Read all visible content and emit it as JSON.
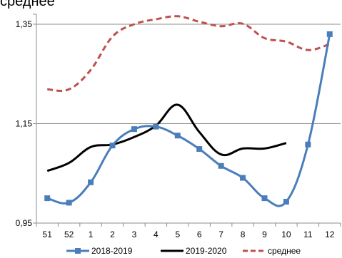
{
  "chart_data": {
    "type": "line",
    "title": "среднее",
    "xlabel": "",
    "ylabel": "",
    "categories": [
      "51",
      "52",
      "1",
      "2",
      "3",
      "4",
      "5",
      "6",
      "7",
      "8",
      "9",
      "10",
      "11",
      "12"
    ],
    "y_ticks": [
      "0,95",
      "1,15",
      "1,35"
    ],
    "ylim": [
      0.95,
      1.37
    ],
    "grid": "horizontal",
    "legend_position": "bottom",
    "series": [
      {
        "name": "2018-2019",
        "color": "#4a7ebb",
        "style": "solid-markers",
        "values": [
          1.0,
          0.991,
          1.032,
          1.106,
          1.139,
          1.144,
          1.126,
          1.099,
          1.065,
          1.041,
          1.0,
          0.993,
          1.108,
          1.33
        ]
      },
      {
        "name": "2019-2020",
        "color": "#000000",
        "style": "solid",
        "values": [
          1.055,
          1.071,
          1.103,
          1.108,
          1.123,
          1.146,
          1.188,
          1.133,
          1.088,
          1.1,
          1.1,
          1.111,
          null,
          null
        ]
      },
      {
        "name": "среднее",
        "color": "#c0504d",
        "style": "dashed",
        "values": [
          1.219,
          1.219,
          1.258,
          1.325,
          1.35,
          1.36,
          1.366,
          1.355,
          1.346,
          1.351,
          1.322,
          1.315,
          1.298,
          1.31
        ]
      }
    ]
  }
}
